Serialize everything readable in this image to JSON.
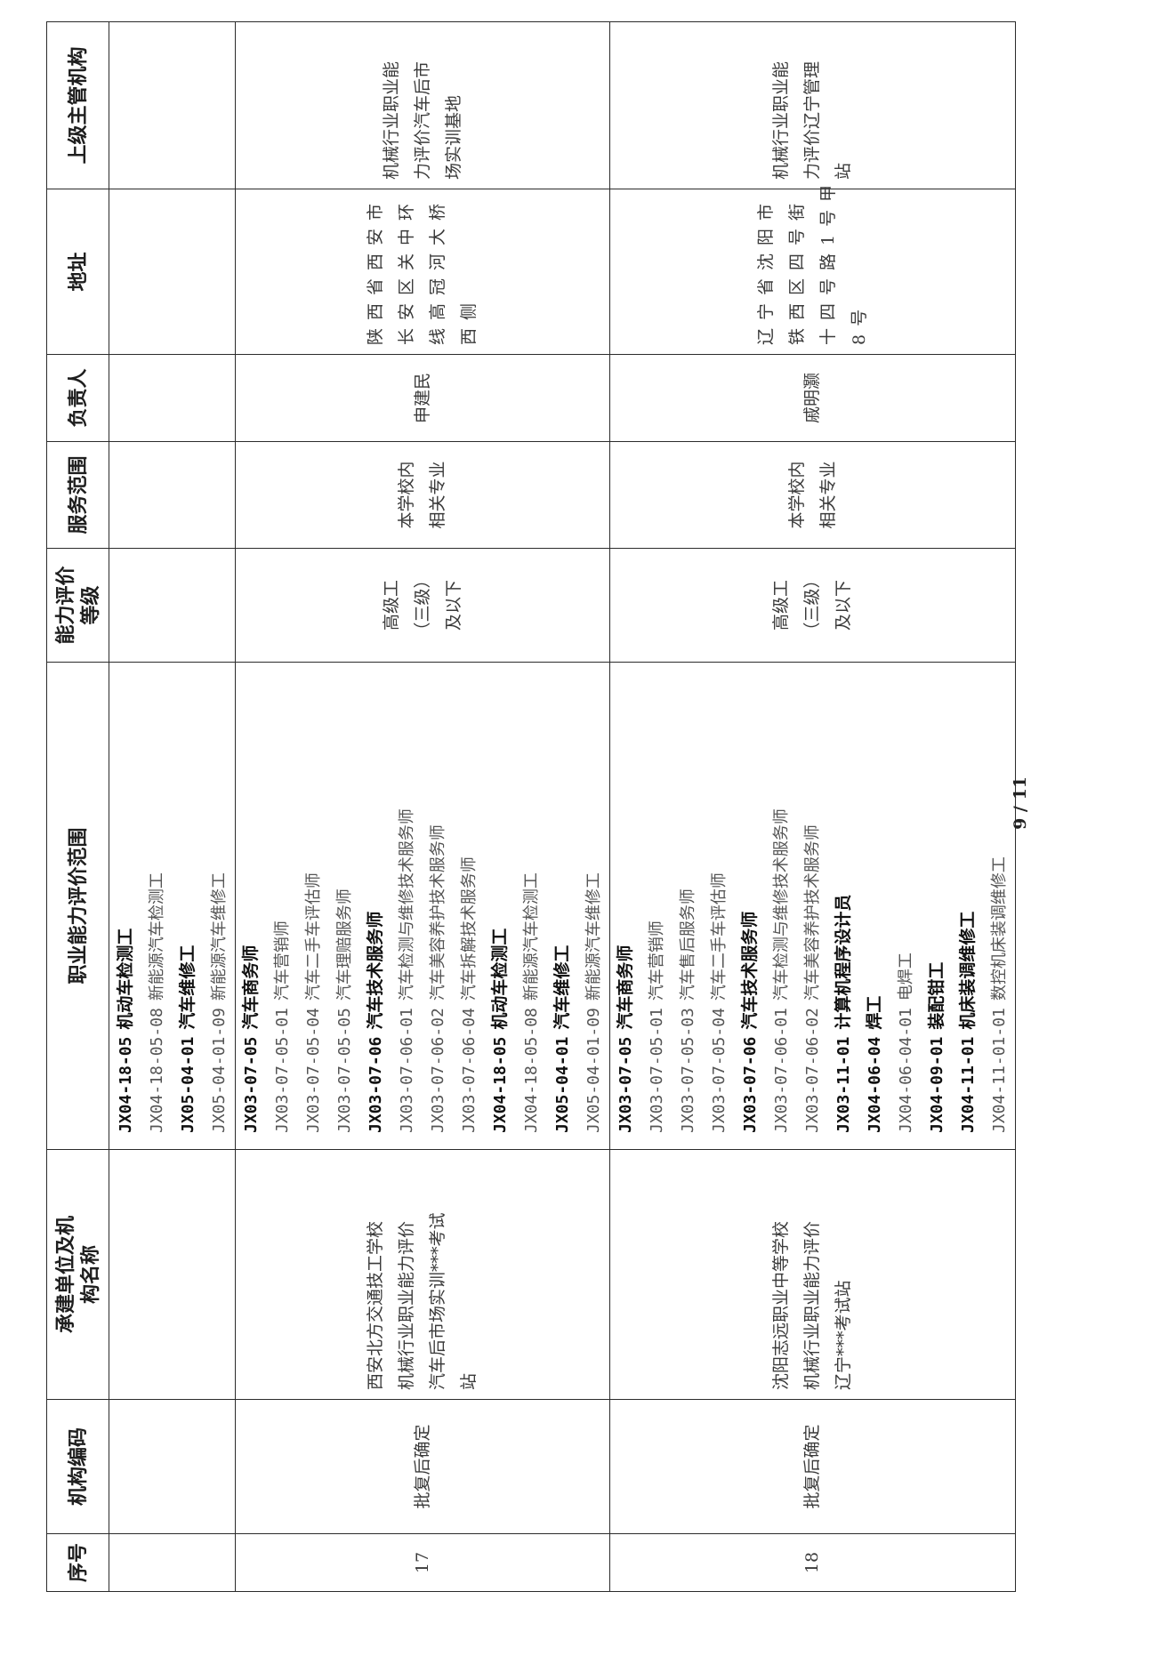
{
  "page_number": "9 / 11",
  "table": {
    "headers": [
      "序号",
      "机构编码",
      "承建单位及机构名称",
      "职业能力评价范围",
      "能力评价等级",
      "服务范围",
      "负责人",
      "地址",
      "上级主管机构"
    ],
    "rows": [
      {
        "seq": "",
        "code": "",
        "org": [],
        "scope": [
          {
            "code": "JX04-18-05",
            "name": "机动车检测工",
            "bold": true
          },
          {
            "code": "JX04-18-05-08",
            "name": "新能源汽车检测工",
            "bold": false
          },
          {
            "code": "JX05-04-01",
            "name": "汽车维修工",
            "bold": true
          },
          {
            "code": "JX05-04-01-09",
            "name": "新能源汽车维修工",
            "bold": false
          }
        ],
        "level": [],
        "service": [],
        "person": "",
        "address": [],
        "supervisor": []
      },
      {
        "seq": "17",
        "code": "批复后确定",
        "org": [
          "西安北方交通技工学校",
          "机械行业职业能力评价",
          "汽车后市场实训***考试",
          "站"
        ],
        "scope": [
          {
            "code": "JX03-07-05",
            "name": "汽车商务师",
            "bold": true
          },
          {
            "code": "JX03-07-05-01",
            "name": "汽车营销师",
            "bold": false
          },
          {
            "code": "JX03-07-05-04",
            "name": "汽车二手车评估师",
            "bold": false
          },
          {
            "code": "JX03-07-05-05",
            "name": "汽车理赔服务师",
            "bold": false
          },
          {
            "code": "JX03-07-06",
            "name": "汽车技术服务师",
            "bold": true
          },
          {
            "code": "JX03-07-06-01",
            "name": "汽车检测与维修技术服务师",
            "bold": false
          },
          {
            "code": "JX03-07-06-02",
            "name": "汽车美容养护技术服务师",
            "bold": false
          },
          {
            "code": "JX03-07-06-04",
            "name": "汽车拆解技术服务师",
            "bold": false
          },
          {
            "code": "JX04-18-05",
            "name": "机动车检测工",
            "bold": true
          },
          {
            "code": "JX04-18-05-08",
            "name": "新能源汽车检测工",
            "bold": false
          },
          {
            "code": "JX05-04-01",
            "name": "汽车维修工",
            "bold": true
          },
          {
            "code": "JX05-04-01-09",
            "name": "新能源汽车维修工",
            "bold": false
          }
        ],
        "level": [
          "高级工",
          "（三级）",
          "及以下"
        ],
        "service": [
          "本学校内",
          "相关专业"
        ],
        "person": "申建民",
        "address": [
          "陕西省西安市",
          "长安区关中环",
          "线高冠河大桥",
          "西侧"
        ],
        "supervisor": [
          "机械行业职业能",
          "力评价汽车后市",
          "场实训基地"
        ]
      },
      {
        "seq": "18",
        "code": "批复后确定",
        "org": [
          "沈阳志远职业中等学校",
          "机械行业职业能力评价",
          "辽宁***考试站"
        ],
        "scope": [
          {
            "code": "JX03-07-05",
            "name": "汽车商务师",
            "bold": true
          },
          {
            "code": "JX03-07-05-01",
            "name": "汽车营销师",
            "bold": false
          },
          {
            "code": "JX03-07-05-03",
            "name": "汽车售后服务师",
            "bold": false
          },
          {
            "code": "JX03-07-05-04",
            "name": "汽车二手车评估师",
            "bold": false
          },
          {
            "code": "JX03-07-06",
            "name": "汽车技术服务师",
            "bold": true
          },
          {
            "code": "JX03-07-06-01",
            "name": "汽车检测与维修技术服务师",
            "bold": false
          },
          {
            "code": "JX03-07-06-02",
            "name": "汽车美容养护技术服务师",
            "bold": false
          },
          {
            "code": "JX03-11-01",
            "name": "计算机程序设计员",
            "bold": true
          },
          {
            "code": "JX04-06-04",
            "name": "焊工",
            "bold": true
          },
          {
            "code": "JX04-06-04-01",
            "name": "电焊工",
            "bold": false
          },
          {
            "code": "JX04-09-01",
            "name": "装配钳工",
            "bold": true
          },
          {
            "code": "JX04-11-01",
            "name": "机床装调维修工",
            "bold": true
          },
          {
            "code": "JX04-11-01-01",
            "name": "数控机床装调维修工",
            "bold": false
          }
        ],
        "level": [
          "高级工",
          "（三级）",
          "及以下"
        ],
        "service": [
          "本学校内",
          "相关专业"
        ],
        "person": "戚明灏",
        "address": [
          "辽宁省沈阳市",
          "铁西区四号街",
          "十四号路1号甲",
          "8号"
        ],
        "supervisor": [
          "机械行业职业能",
          "力评价辽宁管理",
          "站"
        ]
      }
    ]
  }
}
